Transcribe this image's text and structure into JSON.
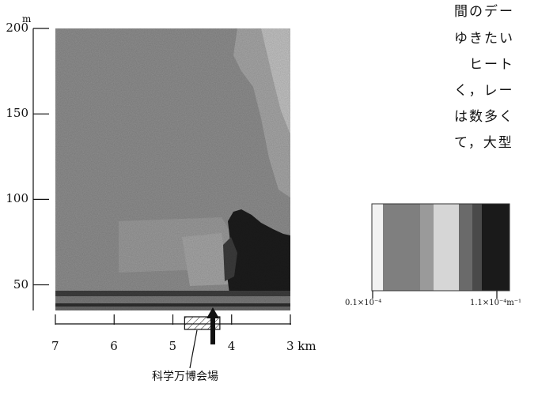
{
  "chart_data": {
    "type": "heatmap",
    "title": "",
    "y_unit": "m",
    "x_unit": "km",
    "y_ticks": [
      {
        "value": 200,
        "label": "200"
      },
      {
        "value": 150,
        "label": "150"
      },
      {
        "value": 100,
        "label": "100"
      },
      {
        "value": 50,
        "label": "50"
      }
    ],
    "x_ticks": [
      {
        "value": 7,
        "label": "7"
      },
      {
        "value": 6,
        "label": "6"
      },
      {
        "value": 5,
        "label": "5"
      },
      {
        "value": 4,
        "label": "4"
      },
      {
        "value": 3,
        "label": "3 km"
      }
    ],
    "ylim": [
      35,
      200
    ],
    "xlim": [
      7,
      3
    ],
    "colorbar": {
      "min_label": "0.1×10⁻⁴",
      "max_label": "1.1×10⁻⁴m⁻¹",
      "colors": [
        "#f2f2f2",
        "#7f7f7f",
        "#9a9a9a",
        "#d6d6d6",
        "#6a6a6a",
        "#4a4a4a",
        "#1a1a1a"
      ]
    },
    "annotation": {
      "label": "科学万博会場",
      "x_range_km": [
        4.8,
        4.2
      ],
      "marker_x_km": 4.32
    }
  },
  "side_text": {
    "lines": [
      "間のデー",
      "ゆきたい",
      "　ヒート",
      "く，レー",
      "は数多く",
      "て，大型"
    ]
  }
}
